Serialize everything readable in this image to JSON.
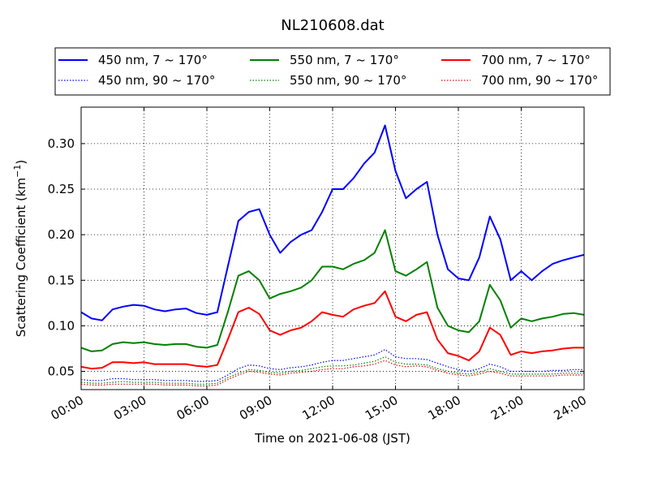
{
  "chart_data": {
    "type": "line",
    "title": "NL210608.dat",
    "xlabel": "Time on 2021-06-08 (JST)",
    "ylabel_main": "Scattering Coefficient (km",
    "ylabel_sup": "−1",
    "ylabel_close": ")",
    "xlim": [
      0,
      24
    ],
    "ylim": [
      0.03,
      0.34
    ],
    "x_ticks": [
      0,
      3,
      6,
      9,
      12,
      15,
      18,
      21,
      24
    ],
    "x_tick_labels": [
      "00:00",
      "03:00",
      "06:00",
      "09:00",
      "12:00",
      "15:00",
      "18:00",
      "21:00",
      "24:00"
    ],
    "y_ticks": [
      0.05,
      0.1,
      0.15,
      0.2,
      0.25,
      0.3
    ],
    "y_tick_labels": [
      "0.05",
      "0.10",
      "0.15",
      "0.20",
      "0.25",
      "0.30"
    ],
    "grid": true,
    "legend_position": "top",
    "x": [
      0,
      0.5,
      1,
      1.5,
      2,
      2.5,
      3,
      3.5,
      4,
      4.5,
      5,
      5.5,
      6,
      6.5,
      7,
      7.5,
      8,
      8.5,
      9,
      9.5,
      10,
      10.5,
      11,
      11.5,
      12,
      12.5,
      13,
      13.5,
      14,
      14.5,
      15,
      15.5,
      16,
      16.5,
      17,
      17.5,
      18,
      18.5,
      19,
      19.5,
      20,
      20.5,
      21,
      21.5,
      22,
      22.5,
      23,
      23.5,
      24
    ],
    "series": [
      {
        "name": "450 nm, 7 ~ 170°",
        "color": "#0000ff",
        "style": "solid",
        "values": [
          0.115,
          0.108,
          0.106,
          0.118,
          0.121,
          0.123,
          0.122,
          0.118,
          0.116,
          0.118,
          0.119,
          0.114,
          0.112,
          0.115,
          0.165,
          0.215,
          0.225,
          0.228,
          0.2,
          0.18,
          0.192,
          0.2,
          0.205,
          0.225,
          0.25,
          0.25,
          0.262,
          0.278,
          0.29,
          0.32,
          0.27,
          0.24,
          0.25,
          0.258,
          0.2,
          0.162,
          0.152,
          0.15,
          0.175,
          0.22,
          0.195,
          0.15,
          0.16,
          0.15,
          0.16,
          0.168,
          0.172,
          0.175,
          0.178
        ]
      },
      {
        "name": "550 nm, 7 ~ 170°",
        "color": "#008000",
        "style": "solid",
        "values": [
          0.076,
          0.072,
          0.073,
          0.08,
          0.082,
          0.081,
          0.082,
          0.08,
          0.079,
          0.08,
          0.08,
          0.077,
          0.076,
          0.079,
          0.115,
          0.155,
          0.16,
          0.15,
          0.13,
          0.135,
          0.138,
          0.142,
          0.15,
          0.165,
          0.165,
          0.162,
          0.168,
          0.172,
          0.18,
          0.205,
          0.16,
          0.155,
          0.162,
          0.17,
          0.12,
          0.1,
          0.095,
          0.093,
          0.105,
          0.145,
          0.128,
          0.098,
          0.108,
          0.105,
          0.108,
          0.11,
          0.113,
          0.114,
          0.112
        ]
      },
      {
        "name": "700 nm, 7 ~ 170°",
        "color": "#ff0000",
        "style": "solid",
        "values": [
          0.055,
          0.053,
          0.054,
          0.06,
          0.06,
          0.059,
          0.06,
          0.058,
          0.058,
          0.058,
          0.058,
          0.056,
          0.055,
          0.057,
          0.085,
          0.115,
          0.12,
          0.113,
          0.095,
          0.09,
          0.095,
          0.098,
          0.105,
          0.115,
          0.112,
          0.11,
          0.118,
          0.122,
          0.125,
          0.138,
          0.11,
          0.105,
          0.112,
          0.115,
          0.085,
          0.07,
          0.067,
          0.062,
          0.072,
          0.098,
          0.09,
          0.068,
          0.072,
          0.07,
          0.072,
          0.073,
          0.075,
          0.076,
          0.076
        ]
      },
      {
        "name": "450 nm, 90 ~ 170°",
        "color": "#0000ff",
        "style": "dotted",
        "values": [
          0.041,
          0.04,
          0.04,
          0.042,
          0.042,
          0.041,
          0.041,
          0.041,
          0.04,
          0.04,
          0.04,
          0.039,
          0.039,
          0.04,
          0.046,
          0.053,
          0.057,
          0.056,
          0.053,
          0.052,
          0.054,
          0.055,
          0.057,
          0.06,
          0.062,
          0.062,
          0.064,
          0.066,
          0.068,
          0.074,
          0.066,
          0.064,
          0.064,
          0.063,
          0.059,
          0.055,
          0.052,
          0.05,
          0.053,
          0.058,
          0.055,
          0.05,
          0.05,
          0.05,
          0.05,
          0.051,
          0.051,
          0.052,
          0.052
        ]
      },
      {
        "name": "550 nm, 90 ~ 170°",
        "color": "#008000",
        "style": "dotted",
        "values": [
          0.038,
          0.037,
          0.037,
          0.038,
          0.039,
          0.038,
          0.038,
          0.038,
          0.037,
          0.037,
          0.037,
          0.036,
          0.036,
          0.037,
          0.043,
          0.048,
          0.052,
          0.051,
          0.049,
          0.048,
          0.05,
          0.051,
          0.053,
          0.055,
          0.056,
          0.056,
          0.057,
          0.059,
          0.061,
          0.066,
          0.06,
          0.058,
          0.058,
          0.057,
          0.053,
          0.05,
          0.048,
          0.047,
          0.049,
          0.053,
          0.05,
          0.047,
          0.047,
          0.047,
          0.047,
          0.047,
          0.048,
          0.048,
          0.048
        ]
      },
      {
        "name": "700 nm, 90 ~ 170°",
        "color": "#ff0000",
        "style": "dotted",
        "values": [
          0.036,
          0.035,
          0.035,
          0.036,
          0.036,
          0.036,
          0.036,
          0.036,
          0.035,
          0.035,
          0.035,
          0.034,
          0.034,
          0.035,
          0.041,
          0.046,
          0.05,
          0.049,
          0.047,
          0.046,
          0.048,
          0.049,
          0.05,
          0.052,
          0.053,
          0.053,
          0.055,
          0.056,
          0.058,
          0.062,
          0.057,
          0.055,
          0.056,
          0.055,
          0.051,
          0.048,
          0.046,
          0.045,
          0.047,
          0.05,
          0.048,
          0.045,
          0.045,
          0.045,
          0.045,
          0.045,
          0.046,
          0.046,
          0.046
        ]
      }
    ]
  }
}
